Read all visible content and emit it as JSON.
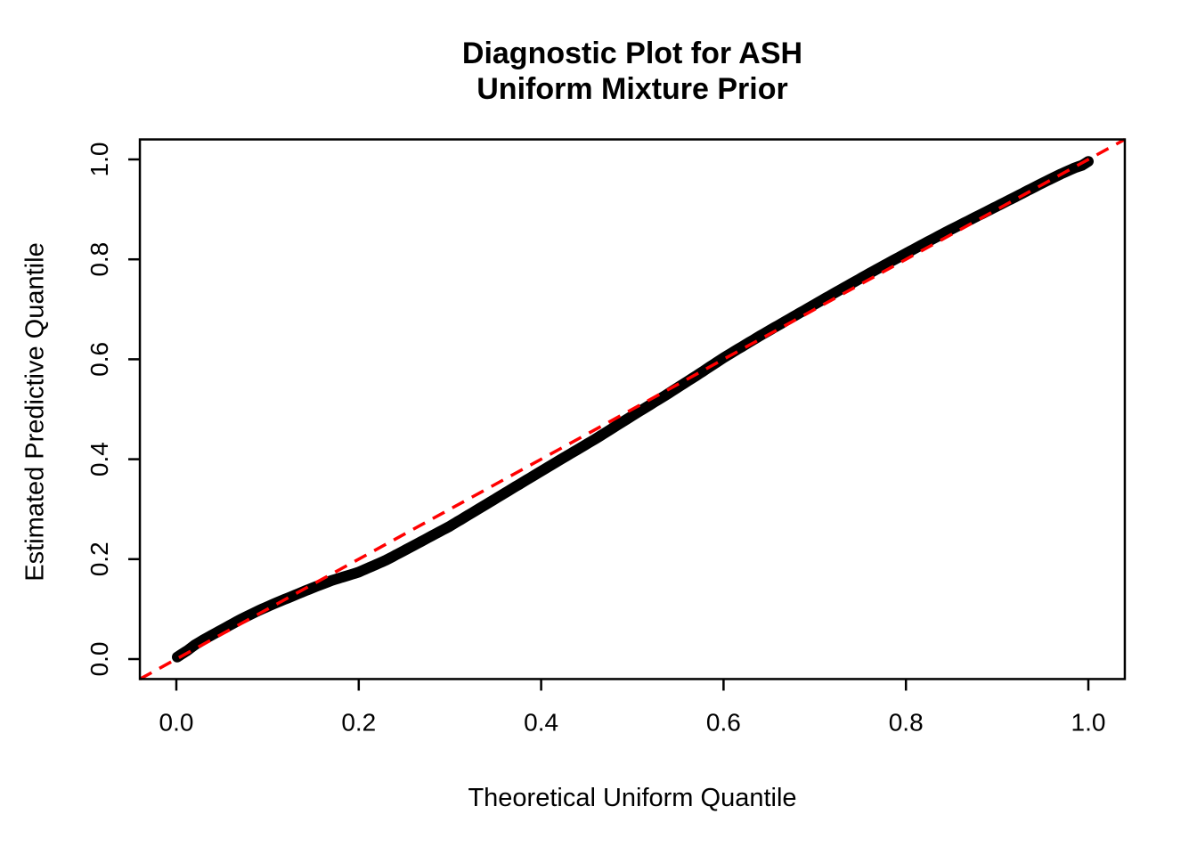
{
  "figure": {
    "title_line1": "Diagnostic Plot for ASH",
    "title_line2": "Uniform Mixture Prior"
  },
  "chart_data": {
    "type": "scatter",
    "title": "Diagnostic Plot for ASH / Uniform Mixture Prior",
    "xlabel": "Theoretical Uniform Quantile",
    "ylabel": "Estimated Predictive Quantile",
    "xlim": [
      -0.04,
      1.04
    ],
    "ylim": [
      -0.04,
      1.04
    ],
    "grid": false,
    "legend": "none",
    "x_tick_labels": [
      "0.0",
      "0.2",
      "0.4",
      "0.6",
      "0.8",
      "1.0"
    ],
    "y_tick_labels": [
      "0.0",
      "0.2",
      "0.4",
      "0.6",
      "0.8",
      "1.0"
    ],
    "x_tick_values": [
      0,
      0.2,
      0.4,
      0.6,
      0.8,
      1
    ],
    "y_tick_values": [
      0,
      0.2,
      0.4,
      0.6,
      0.8,
      1
    ],
    "series": [
      {
        "name": "estimated-predictive-quantiles",
        "type": "scatter-curve",
        "color": "#000000",
        "marker_size_px": 12,
        "points": [
          [
            0.001,
            0.004
          ],
          [
            0.006,
            0.01
          ],
          [
            0.012,
            0.017
          ],
          [
            0.02,
            0.028
          ],
          [
            0.03,
            0.039
          ],
          [
            0.05,
            0.059
          ],
          [
            0.07,
            0.079
          ],
          [
            0.09,
            0.097
          ],
          [
            0.11,
            0.113
          ],
          [
            0.13,
            0.128
          ],
          [
            0.15,
            0.143
          ],
          [
            0.17,
            0.157
          ],
          [
            0.2,
            0.174
          ],
          [
            0.23,
            0.198
          ],
          [
            0.26,
            0.227
          ],
          [
            0.3,
            0.266
          ],
          [
            0.34,
            0.31
          ],
          [
            0.38,
            0.354
          ],
          [
            0.42,
            0.398
          ],
          [
            0.46,
            0.441
          ],
          [
            0.5,
            0.487
          ],
          [
            0.54,
            0.532
          ],
          [
            0.57,
            0.567
          ],
          [
            0.6,
            0.603
          ],
          [
            0.64,
            0.647
          ],
          [
            0.68,
            0.689
          ],
          [
            0.72,
            0.731
          ],
          [
            0.76,
            0.772
          ],
          [
            0.8,
            0.812
          ],
          [
            0.84,
            0.851
          ],
          [
            0.88,
            0.888
          ],
          [
            0.92,
            0.925
          ],
          [
            0.95,
            0.953
          ],
          [
            0.97,
            0.971
          ],
          [
            0.985,
            0.983
          ],
          [
            0.993,
            0.988
          ],
          [
            1.0,
            0.996
          ]
        ]
      },
      {
        "name": "identity-reference-line",
        "type": "line",
        "color": "#FF0000",
        "style": "dashed",
        "from": [
          -0.04,
          -0.04
        ],
        "to": [
          1.04,
          1.04
        ]
      }
    ]
  },
  "colors": {
    "background": "#FFFFFF",
    "axis": "#000000",
    "curve": "#000000",
    "reference_line": "#FF0000"
  }
}
